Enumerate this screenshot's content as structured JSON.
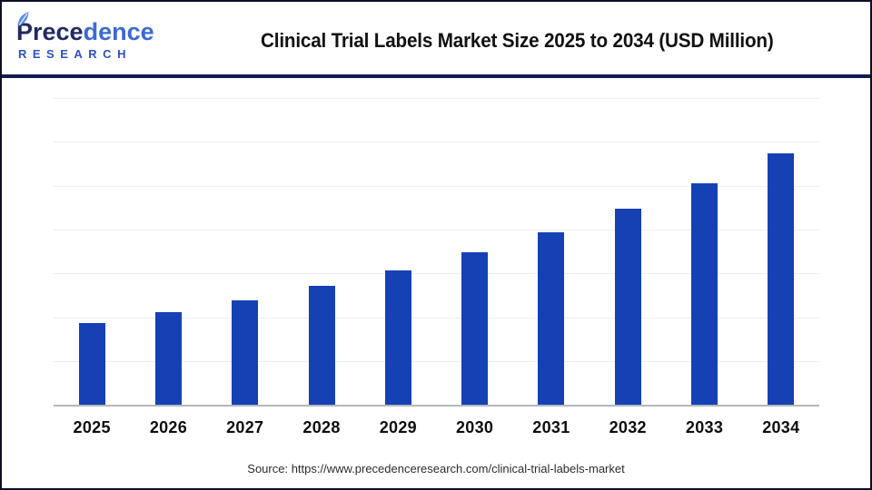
{
  "header": {
    "logo": {
      "name_part1": "Prece",
      "name_part2": "dence",
      "subtitle": "RESEARCH"
    },
    "title": "Clinical Trial Labels Market Size 2025 to 2034 (USD Million)"
  },
  "chart_data": {
    "type": "bar",
    "title": "Clinical Trial Labels Market Size 2025 to 2034 (USD Million)",
    "unit": "USD Million",
    "categories": [
      "2025",
      "2026",
      "2027",
      "2028",
      "2029",
      "2030",
      "2031",
      "2032",
      "2033",
      "2034"
    ],
    "values": [
      2450,
      2777,
      3148,
      3568,
      4044,
      4584,
      5196,
      5890,
      6676,
      7567
    ],
    "values_note": "Estimated from bar heights (~13.3% CAGR growth pattern); chart displays no y-axis ticks or data labels",
    "xlabel": "",
    "ylabel": "",
    "ylim": [
      0,
      9250
    ],
    "grid": true,
    "legend": false,
    "bar_color": "#1641b5"
  },
  "footer": {
    "source": "Source: https://www.precedenceresearch.com/clinical-trial-labels-market"
  },
  "colors": {
    "bar": "#1641b5",
    "header_rule": "#131b4e",
    "page_border": "#0d1029",
    "axis_line": "#b3b6bc",
    "gridline": "#eeeeee",
    "logo_navy": "#222b5e",
    "logo_blue": "#3b6ad2",
    "logo_research": "#2e52c6",
    "leaf": "#5d8ee6",
    "title_text": "#111111",
    "label_text": "#0e0e0e",
    "source_text": "#2c2c2c"
  }
}
